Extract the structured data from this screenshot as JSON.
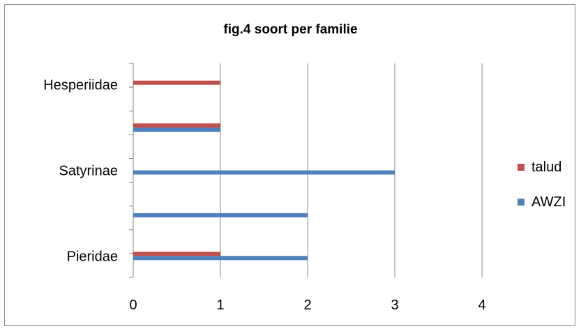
{
  "chart_data": {
    "type": "bar",
    "orientation": "horizontal",
    "title": "fig.4 soort per familie",
    "xlabel": "",
    "ylabel": "",
    "xlim": [
      0,
      4
    ],
    "x_ticks": [
      "0",
      "1",
      "2",
      "3",
      "4"
    ],
    "categories": [
      "Pieridae",
      "",
      "Satyrinae",
      "",
      "Hesperiidae"
    ],
    "series": [
      {
        "name": "AWZI",
        "color": "#4f81bd",
        "values": [
          2,
          2,
          3,
          1,
          0
        ]
      },
      {
        "name": "talud",
        "color": "#c0504d",
        "values": [
          1,
          0,
          0,
          1,
          1
        ]
      }
    ],
    "legend": {
      "position": "right",
      "order": [
        "talud",
        "AWZI"
      ]
    },
    "grid": {
      "vertical": true
    }
  }
}
